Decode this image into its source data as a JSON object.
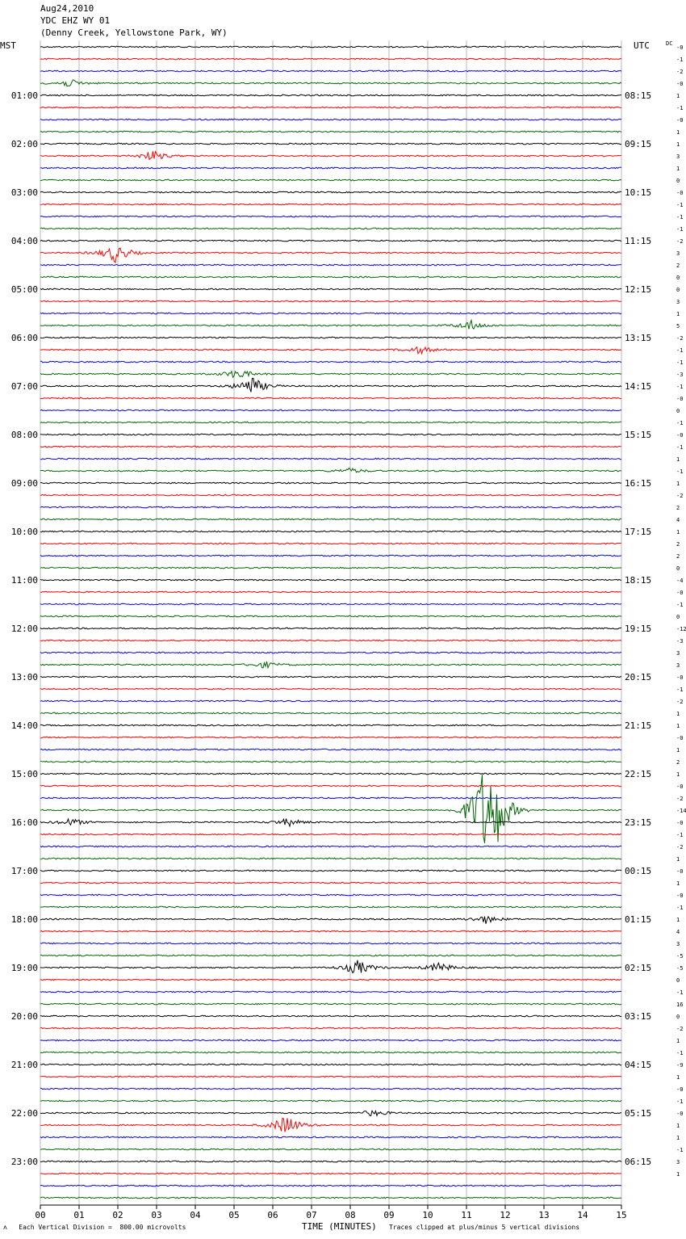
{
  "header": {
    "date": "Aug24,2010",
    "station": "YDC EHZ WY 01",
    "location": "(Denny Creek, Yellowstone Park, WY)"
  },
  "left_tz": "MST",
  "right_tz": "UTC",
  "dc_label": "DC",
  "footer": {
    "scale_text": "Each Vertical Division =  800.00 microvolts",
    "clip_text": "Traces clipped at plus/minus 5 vertical divisions",
    "mark": "ʌ"
  },
  "chart_data": {
    "type": "line",
    "title": "",
    "xlabel": "TIME (MINUTES)",
    "x_ticks": [
      "00",
      "01",
      "02",
      "03",
      "04",
      "05",
      "06",
      "07",
      "08",
      "09",
      "10",
      "11",
      "12",
      "13",
      "14",
      "15"
    ],
    "xlim": [
      0,
      15
    ],
    "grid": true,
    "trace_colors": [
      "#000000",
      "#ff0000",
      "#0000ff",
      "#006600"
    ],
    "left_hour_labels": [
      "01:00",
      "02:00",
      "03:00",
      "04:00",
      "05:00",
      "06:00",
      "07:00",
      "08:00",
      "09:00",
      "10:00",
      "11:00",
      "12:00",
      "13:00",
      "14:00",
      "15:00",
      "16:00",
      "17:00",
      "18:00",
      "19:00",
      "20:00",
      "21:00",
      "22:00",
      "23:00"
    ],
    "right_hour_labels": [
      "08:15",
      "09:15",
      "10:15",
      "11:15",
      "12:15",
      "13:15",
      "14:15",
      "15:15",
      "16:15",
      "17:15",
      "18:15",
      "19:15",
      "20:15",
      "21:15",
      "22:15",
      "23:15",
      "00:15",
      "01:15",
      "02:15",
      "03:15",
      "04:15",
      "05:15",
      "06:15"
    ],
    "dc_offsets": [
      "-0",
      "-1",
      "-2",
      "-0",
      "1",
      "-1",
      "-0",
      "1",
      "1",
      "3",
      "1",
      "0",
      "-0",
      "-1",
      "-1",
      "-1",
      "-2",
      "3",
      "2",
      "0",
      "0",
      "3",
      "1",
      "5",
      "-2",
      "-1",
      "-1",
      "-3",
      "-1",
      "-0",
      "0",
      "-1",
      "-0",
      "-1",
      "1",
      "-1",
      "1",
      "-2",
      "2",
      "4",
      "1",
      "2",
      "2",
      "0",
      "-4",
      "-0",
      "-1",
      "0",
      "-12",
      "-3",
      "3",
      "3",
      "-0",
      "-1",
      "-2",
      "1",
      "1",
      "-0",
      "1",
      "2",
      "1",
      "-0",
      "-2",
      "-14",
      "-0",
      "-1",
      "-2",
      "1",
      "-0",
      "1",
      "-0",
      "-1",
      "1",
      "4",
      "3",
      "-5",
      "-5",
      "0",
      "-1",
      "16",
      "0",
      "-2",
      "1",
      "-1",
      "-9",
      "1",
      "-0",
      "-1",
      "-0",
      "1",
      "1",
      "-1",
      "3",
      "1"
    ],
    "events": [
      {
        "row": 3,
        "minute": 0.75,
        "amplitude": 0.6
      },
      {
        "row": 9,
        "minute": 2.9,
        "amplitude": 0.8
      },
      {
        "row": 17,
        "minute": 1.95,
        "amplitude": 1.5
      },
      {
        "row": 23,
        "minute": 11.1,
        "amplitude": 0.8
      },
      {
        "row": 25,
        "minute": 9.8,
        "amplitude": 0.6
      },
      {
        "row": 27,
        "minute": 5.1,
        "amplitude": 0.8
      },
      {
        "row": 28,
        "minute": 5.45,
        "amplitude": 1.5
      },
      {
        "row": 35,
        "minute": 8.0,
        "amplitude": 0.4
      },
      {
        "row": 51,
        "minute": 5.8,
        "amplitude": 0.5
      },
      {
        "row": 63,
        "minute": 11.4,
        "amplitude": 5.0
      },
      {
        "row": 63,
        "minute": 11.75,
        "amplitude": 5.0
      },
      {
        "row": 64,
        "minute": 0.8,
        "amplitude": 0.6
      },
      {
        "row": 64,
        "minute": 6.4,
        "amplitude": 0.6
      },
      {
        "row": 72,
        "minute": 11.5,
        "amplitude": 0.6
      },
      {
        "row": 76,
        "minute": 8.2,
        "amplitude": 1.2
      },
      {
        "row": 76,
        "minute": 10.3,
        "amplitude": 0.8
      },
      {
        "row": 88,
        "minute": 8.6,
        "amplitude": 0.5
      },
      {
        "row": 89,
        "minute": 6.35,
        "amplitude": 1.6
      }
    ]
  }
}
